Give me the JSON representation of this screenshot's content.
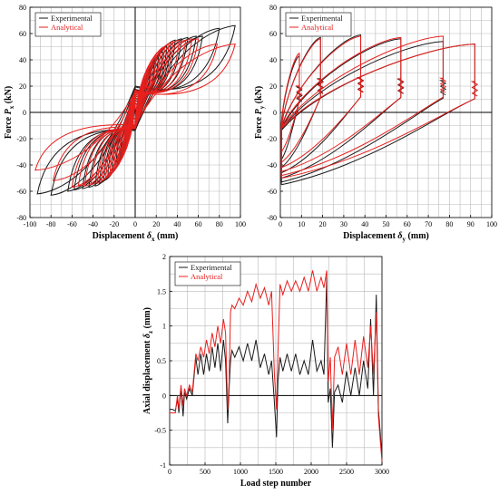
{
  "chart_data": [
    {
      "type": "line",
      "panel": "top-left",
      "xlabel": "Displacement δx (mm)",
      "xlabel_main": "Displacement ",
      "xlabel_sym": "δ",
      "xlabel_sub": "x",
      "xlabel_unit": " (mm)",
      "ylabel_main": "Force ",
      "ylabel_sym": "P",
      "ylabel_sub": "x",
      "ylabel_unit": " (kN)",
      "xlim": [
        -100,
        100
      ],
      "ylim": [
        -80,
        80
      ],
      "xticks": [
        -100,
        -80,
        -60,
        -40,
        -20,
        0,
        20,
        40,
        60,
        80,
        100
      ],
      "yticks": [
        -80,
        -60,
        -40,
        -20,
        0,
        20,
        40,
        60,
        80
      ],
      "grid": true,
      "legend_position": "top-left",
      "series": [
        {
          "name": "Experimental",
          "color": "#1a1a1a",
          "cycles": [
            {
              "d": [
                10,
                14,
                18,
                22,
                26,
                30,
                34
              ],
              "fmax": [
                22,
                30,
                36,
                42,
                46,
                50,
                53
              ],
              "fmin": [
                -22,
                -32,
                -38,
                -44,
                -48,
                -52,
                -54
              ]
            },
            {
              "d": [
                38,
                44,
                50,
                58,
                64
              ],
              "fmax": [
                55,
                56,
                57,
                58,
                58
              ],
              "fmin": [
                -56,
                -57,
                -58,
                -59,
                -60
              ]
            },
            {
              "d": [
                80,
                95
              ],
              "fmax": [
                64,
                66
              ],
              "fmin": [
                -63,
                -62
              ],
              "dneg": [
                -80,
                -93
              ]
            }
          ]
        },
        {
          "name": "Analytical",
          "color": "#e8201e",
          "cycles": [
            {
              "d": [
                8,
                12,
                16,
                20,
                24,
                28,
                32,
                36
              ],
              "fmax": [
                24,
                32,
                38,
                43,
                47,
                50,
                52,
                54
              ],
              "fmin": [
                -24,
                -32,
                -38,
                -43,
                -47,
                -50,
                -52,
                -54
              ]
            },
            {
              "d": [
                42,
                48,
                54,
                60
              ],
              "fmax": [
                55,
                55,
                56,
                56
              ],
              "fmin": [
                -55,
                -56,
                -56,
                -57
              ]
            },
            {
              "d": [
                78,
                95
              ],
              "fmax": [
                52,
                52
              ],
              "fmin": [
                -52,
                -44
              ],
              "dneg": [
                -78,
                -95
              ]
            }
          ]
        }
      ]
    },
    {
      "type": "line",
      "panel": "top-right",
      "xlabel": "Displacement δy (mm)",
      "xlabel_main": "Displacement ",
      "xlabel_sym": "δ",
      "xlabel_sub": "y",
      "xlabel_unit": " (mm)",
      "ylabel_main": "Force ",
      "ylabel_sym": "P",
      "ylabel_sub": "y",
      "ylabel_unit": " (kN)",
      "xlim": [
        0,
        100
      ],
      "ylim": [
        -80,
        80
      ],
      "xticks": [
        0,
        10,
        20,
        30,
        40,
        50,
        60,
        70,
        80,
        90,
        100
      ],
      "yticks": [
        -80,
        -60,
        -40,
        -20,
        0,
        20,
        40,
        60,
        80
      ],
      "grid": true,
      "legend_position": "top-left",
      "series": [
        {
          "name": "Experimental",
          "color": "#1a1a1a",
          "peaks_x": [
            9,
            19,
            38,
            57,
            77,
            92
          ],
          "peaks_y": [
            43,
            57,
            59,
            56,
            54,
            52
          ],
          "troughs_y": [
            -36,
            -42,
            -46,
            -50,
            -53,
            -55
          ]
        },
        {
          "name": "Analytical",
          "color": "#e8201e",
          "peaks_x": [
            9,
            19,
            38,
            57,
            77,
            92
          ],
          "peaks_y": [
            45,
            56,
            58,
            57,
            58,
            52
          ],
          "troughs_y": [
            -30,
            -38,
            -42,
            -45,
            -48,
            -50
          ]
        }
      ]
    },
    {
      "type": "line",
      "panel": "bottom",
      "xlabel": "Load step number",
      "ylabel_main": "Axial displacement ",
      "ylabel_sym": "δ",
      "ylabel_sub": "z",
      "ylabel_unit": " (mm)",
      "xlim": [
        0,
        3000
      ],
      "ylim": [
        -1,
        2
      ],
      "xticks": [
        0,
        500,
        1000,
        1500,
        2000,
        2500,
        3000
      ],
      "yticks": [
        -1,
        -0.5,
        0,
        0.5,
        1,
        1.5,
        2
      ],
      "ytick_labels": [
        "-1",
        "-0.5",
        "0",
        "0.5",
        "1",
        "1.5",
        "2"
      ],
      "grid": true,
      "legend_position": "top-left",
      "series": [
        {
          "name": "Experimental",
          "color": "#1a1a1a",
          "x": [
            0,
            40,
            80,
            110,
            130,
            160,
            190,
            210,
            240,
            280,
            320,
            370,
            400,
            440,
            480,
            520,
            560,
            600,
            640,
            680,
            720,
            760,
            790,
            820,
            840,
            860,
            880,
            920,
            980,
            1040,
            1100,
            1160,
            1220,
            1280,
            1340,
            1400,
            1440,
            1480,
            1510,
            1530,
            1560,
            1600,
            1660,
            1720,
            1780,
            1840,
            1900,
            1960,
            2020,
            2080,
            2140,
            2180,
            2220,
            2240,
            2270,
            2300,
            2330,
            2380,
            2440,
            2500,
            2560,
            2620,
            2680,
            2740,
            2800,
            2840,
            2880,
            2920,
            2950,
            2980,
            3000
          ],
          "y": [
            -0.2,
            -0.2,
            -0.22,
            -0.05,
            -0.25,
            0.1,
            -0.3,
            0.05,
            -0.05,
            0.1,
            0.0,
            0.55,
            0.3,
            0.6,
            0.3,
            0.6,
            0.35,
            0.7,
            0.4,
            0.75,
            0.35,
            0.8,
            0.5,
            -0.4,
            0.1,
            0.5,
            0.65,
            0.55,
            0.7,
            0.5,
            0.75,
            0.5,
            0.8,
            0.4,
            0.6,
            0.3,
            0.5,
            -0.1,
            -0.6,
            0.2,
            0.55,
            0.35,
            0.6,
            0.35,
            0.6,
            0.3,
            0.5,
            0.3,
            0.8,
            0.35,
            0.5,
            0.3,
            1.7,
            -0.1,
            0.1,
            -0.75,
            0.05,
            0.15,
            -0.1,
            0.35,
            0.0,
            0.4,
            0.0,
            0.5,
            0.1,
            1.1,
            0.0,
            1.45,
            -0.2,
            -0.6,
            -0.9
          ]
        },
        {
          "name": "Analytical",
          "color": "#e8201e",
          "x": [
            0,
            40,
            80,
            110,
            130,
            160,
            190,
            210,
            240,
            280,
            320,
            370,
            400,
            440,
            480,
            520,
            560,
            600,
            640,
            680,
            720,
            760,
            790,
            820,
            840,
            860,
            880,
            920,
            980,
            1040,
            1100,
            1160,
            1220,
            1280,
            1340,
            1400,
            1440,
            1480,
            1510,
            1530,
            1560,
            1600,
            1660,
            1720,
            1780,
            1840,
            1900,
            1960,
            2020,
            2080,
            2140,
            2180,
            2220,
            2240,
            2270,
            2300,
            2330,
            2380,
            2440,
            2500,
            2560,
            2620,
            2680,
            2740,
            2800,
            2840,
            2880,
            2920,
            2950,
            2980,
            3000
          ],
          "y": [
            -0.25,
            -0.25,
            -0.25,
            0.0,
            -0.2,
            0.15,
            -0.15,
            0.1,
            0.0,
            0.15,
            0.05,
            0.6,
            0.5,
            0.7,
            0.55,
            0.8,
            0.6,
            0.9,
            0.7,
            1.0,
            0.75,
            1.1,
            0.9,
            -0.2,
            0.2,
            1.2,
            1.3,
            1.25,
            1.4,
            1.3,
            1.5,
            1.35,
            1.6,
            1.4,
            1.55,
            1.3,
            1.5,
            0.3,
            -0.2,
            0.6,
            1.6,
            1.45,
            1.65,
            1.5,
            1.65,
            1.5,
            1.7,
            1.5,
            1.8,
            1.5,
            1.7,
            1.55,
            1.8,
            0.2,
            0.55,
            -0.5,
            0.55,
            0.7,
            0.3,
            0.75,
            0.3,
            0.8,
            0.3,
            0.85,
            0.4,
            1.0,
            0.3,
            1.2,
            -0.3,
            -0.7,
            -0.95
          ]
        }
      ]
    }
  ]
}
